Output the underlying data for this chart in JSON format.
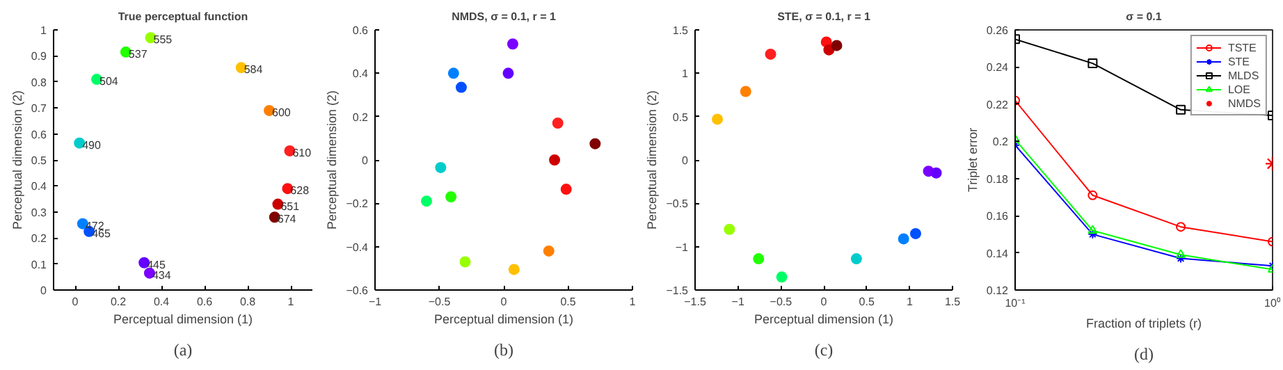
{
  "chart_data": [
    {
      "type": "scatter",
      "title": "True perceptual function",
      "xlabel": "Perceptual dimension (1)",
      "ylabel": "Perceptual dimension (2)",
      "annotations": [
        "(a)",
        {
          "text": "434",
          "x": 0.345,
          "y": 0.065
        },
        {
          "text": "445",
          "x": 0.32,
          "y": 0.105
        },
        {
          "text": "465",
          "x": 0.065,
          "y": 0.225
        },
        {
          "text": "472",
          "x": 0.035,
          "y": 0.255
        },
        {
          "text": "490",
          "x": 0.02,
          "y": 0.565
        },
        {
          "text": "504",
          "x": 0.1,
          "y": 0.81
        },
        {
          "text": "537",
          "x": 0.235,
          "y": 0.915
        },
        {
          "text": "555",
          "x": 0.35,
          "y": 0.97
        },
        {
          "text": "584",
          "x": 0.77,
          "y": 0.855
        },
        {
          "text": "600",
          "x": 0.9,
          "y": 0.69
        },
        {
          "text": "610",
          "x": 0.995,
          "y": 0.535
        },
        {
          "text": "628",
          "x": 0.985,
          "y": 0.39
        },
        {
          "text": "651",
          "x": 0.94,
          "y": 0.33
        },
        {
          "text": "674",
          "x": 0.925,
          "y": 0.28
        }
      ],
      "xlim": [
        -0.1,
        1.1
      ],
      "xticks": [
        0,
        0.2,
        0.4,
        0.6,
        0.8,
        1
      ],
      "ylim": [
        0,
        1
      ],
      "yticks": [
        0,
        0.1,
        0.2,
        0.3,
        0.4,
        0.5,
        0.6,
        0.7,
        0.8,
        0.9,
        1
      ],
      "grid": false,
      "marker": "circle",
      "series": [
        {
          "x": [
            0.345,
            0.32,
            0.065,
            0.035,
            0.02,
            0.1,
            0.235,
            0.35,
            0.77,
            0.9,
            0.995,
            0.985,
            0.94,
            0.925
          ],
          "values": [
            0.065,
            0.105,
            0.225,
            0.255,
            0.565,
            0.81,
            0.915,
            0.97,
            0.855,
            0.69,
            0.535,
            0.39,
            0.33,
            0.28
          ],
          "colors": [
            "#7a00ff",
            "#6400ff",
            "#0050ff",
            "#0080ff",
            "#00cccc",
            "#00ff66",
            "#22ff00",
            "#99ff00",
            "#ffc000",
            "#ff8000",
            "#ff2020",
            "#ff1010",
            "#cc0000",
            "#800000"
          ]
        }
      ]
    },
    {
      "type": "scatter",
      "title": "NMDS, σ = 0.1, r = 1",
      "xlabel": "Perceptual dimension (1)",
      "ylabel": "Perceptual dimension (2)",
      "annotations": [
        "(b)"
      ],
      "xlim": [
        -1,
        1
      ],
      "xticks": [
        -1,
        -0.5,
        0,
        0.5,
        1
      ],
      "ylim": [
        -0.6,
        0.6
      ],
      "yticks": [
        -0.6,
        -0.4,
        -0.2,
        0,
        0.2,
        0.4,
        0.6
      ],
      "grid": false,
      "marker": "circle",
      "series": [
        {
          "x": [
            0.07,
            0.035,
            -0.33,
            -0.39,
            -0.49,
            -0.6,
            -0.41,
            -0.3,
            0.08,
            0.35,
            0.42,
            0.485,
            0.395,
            0.71
          ],
          "values": [
            0.535,
            0.4,
            0.335,
            0.4,
            -0.035,
            -0.19,
            -0.17,
            -0.47,
            -0.505,
            -0.42,
            0.17,
            -0.135,
            0.0,
            0.075
          ],
          "colors": [
            "#7a00ff",
            "#6400ff",
            "#0050ff",
            "#0080ff",
            "#00cccc",
            "#00ff66",
            "#22ff00",
            "#99ff00",
            "#ffc000",
            "#ff8000",
            "#ff2020",
            "#ff1010",
            "#cc0000",
            "#800000"
          ]
        }
      ]
    },
    {
      "type": "scatter",
      "title": "STE, σ = 0.1, r = 1",
      "xlabel": "Perceptual dimension (1)",
      "ylabel": "Perceptual dimension (2)",
      "annotations": [
        "(c)"
      ],
      "xlim": [
        -1.5,
        1.5
      ],
      "xticks": [
        -1.5,
        -1,
        -0.5,
        0,
        0.5,
        1,
        1.5
      ],
      "ylim": [
        -1.5,
        1.5
      ],
      "yticks": [
        -1.5,
        -1,
        -0.5,
        0,
        0.5,
        1,
        1.5
      ],
      "grid": false,
      "marker": "circle",
      "series": [
        {
          "x": [
            1.22,
            1.31,
            1.07,
            0.93,
            0.38,
            -0.49,
            -0.76,
            -1.1,
            -1.24,
            -0.91,
            -0.62,
            0.03,
            0.06,
            0.15
          ],
          "values": [
            -0.13,
            -0.15,
            -0.85,
            -0.91,
            -1.14,
            -1.35,
            -1.14,
            -0.8,
            0.47,
            0.79,
            1.22,
            1.36,
            1.27,
            1.32
          ],
          "colors": [
            "#7a00ff",
            "#6400ff",
            "#0050ff",
            "#0080ff",
            "#00cccc",
            "#00ff66",
            "#22ff00",
            "#99ff00",
            "#ffc000",
            "#ff8000",
            "#ff2020",
            "#ff1010",
            "#cc0000",
            "#800000"
          ]
        }
      ]
    },
    {
      "type": "line",
      "title": "σ = 0.1",
      "xlabel": "Fraction of triplets (r)",
      "ylabel": "Triplet error",
      "annotations": [
        "(d)"
      ],
      "log": "x",
      "xlim": [
        0.1,
        1
      ],
      "xticks": [
        {
          "value": 0.1,
          "label": "10⁻¹"
        },
        {
          "value": 1,
          "label": "10⁰"
        }
      ],
      "ylim": [
        0.12,
        0.26
      ],
      "yticks": [
        0.12,
        0.14,
        0.16,
        0.18,
        0.2,
        0.22,
        0.24,
        0.26
      ],
      "grid": false,
      "legend": "top right",
      "x": [
        0.1,
        0.2,
        0.44,
        1
      ],
      "series": [
        {
          "name": "TSTE",
          "color": "#ff0000",
          "marker": "circle",
          "values": [
            0.222,
            0.171,
            0.154,
            0.146
          ]
        },
        {
          "name": "STE",
          "color": "#0000ff",
          "marker": "cross",
          "values": [
            0.198,
            0.15,
            0.137,
            0.133
          ]
        },
        {
          "name": "MLDS",
          "color": "#000000",
          "marker": "square",
          "values": [
            0.255,
            0.242,
            0.217,
            0.214
          ]
        },
        {
          "name": "LOE",
          "color": "#00ff00",
          "marker": "triangle",
          "values": [
            0.201,
            0.152,
            0.139,
            0.131
          ]
        },
        {
          "name": "NMDS",
          "color": "#ff0000",
          "type": "scatter",
          "marker": "cross",
          "x": [
            1
          ],
          "values": [
            0.188
          ]
        }
      ]
    }
  ]
}
